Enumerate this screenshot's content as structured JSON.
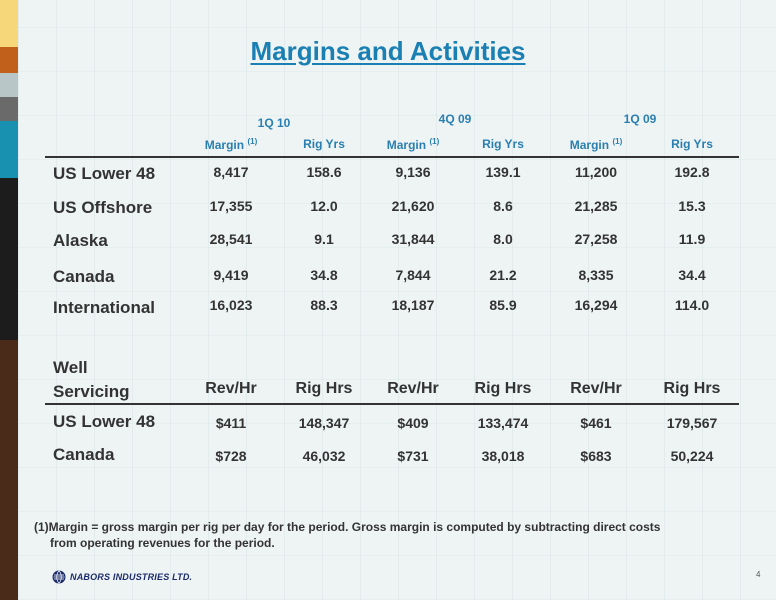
{
  "colors": {
    "title": "#1a7fb2",
    "header": "#2a7fb0",
    "text": "#333333"
  },
  "title": "Margins and Activities",
  "periods": [
    "1Q 10",
    "4Q 09",
    "1Q 09"
  ],
  "rig_table": {
    "headers": [
      "Margin",
      "Rig Yrs",
      "Margin",
      "Rig Yrs",
      "Margin",
      "Rig Yrs"
    ],
    "footnote_marker": "(1)",
    "rows": [
      {
        "label": "US Lower 48",
        "values": [
          "8,417",
          "158.6",
          "9,136",
          "139.1",
          "11,200",
          "192.8"
        ]
      },
      {
        "label": "US Offshore",
        "values": [
          "17,355",
          "12.0",
          "21,620",
          "8.6",
          "21,285",
          "15.3"
        ]
      },
      {
        "label": "Alaska",
        "values": [
          "28,541",
          "9.1",
          "31,844",
          "8.0",
          "27,258",
          "11.9"
        ]
      },
      {
        "label": "Canada",
        "values": [
          "9,419",
          "34.8",
          "7,844",
          "21.2",
          "8,335",
          "34.4"
        ]
      },
      {
        "label": "International",
        "values": [
          "16,023",
          "88.3",
          "18,187",
          "85.9",
          "16,294",
          "114.0"
        ]
      }
    ]
  },
  "well_servicing": {
    "label_line1": "Well",
    "label_line2": "Servicing",
    "headers": [
      "Rev/Hr",
      "Rig Hrs",
      "Rev/Hr",
      "Rig Hrs",
      "Rev/Hr",
      "Rig Hrs"
    ],
    "rows": [
      {
        "label": "US Lower 48",
        "values": [
          "$411",
          "148,347",
          "$409",
          "133,474",
          "$461",
          "179,567"
        ]
      },
      {
        "label": "Canada",
        "values": [
          "$728",
          "46,032",
          "$731",
          "38,018",
          "$683",
          "50,224"
        ]
      }
    ]
  },
  "footnote": {
    "marker": "(1)",
    "line1": "Margin = gross margin per rig per day for the period.  Gross margin is computed by subtracting direct costs",
    "line2": "from operating revenues for the period."
  },
  "logo_text": "NABORS INDUSTRIES LTD.",
  "logo_icon": "nabors-globe-icon",
  "page_number": "4",
  "side_stripe_colors": [
    "#f6d77a",
    "#c0601a",
    "#b8c6c8",
    "#6a6a6a",
    "#1890b0",
    "#1c1c1c",
    "#4a2a18"
  ]
}
